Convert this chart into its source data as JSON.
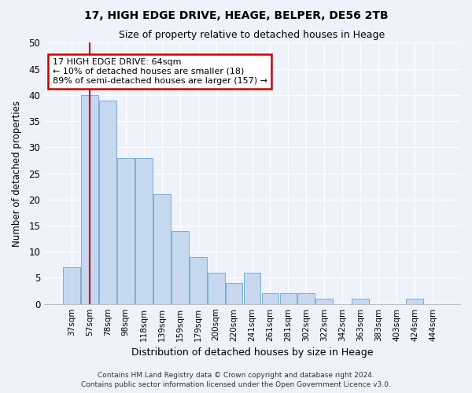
{
  "title": "17, HIGH EDGE DRIVE, HEAGE, BELPER, DE56 2TB",
  "subtitle": "Size of property relative to detached houses in Heage",
  "xlabel": "Distribution of detached houses by size in Heage",
  "ylabel": "Number of detached properties",
  "bar_color": "#c5d8f0",
  "bar_edge_color": "#7aadd4",
  "categories": [
    "37sqm",
    "57sqm",
    "78sqm",
    "98sqm",
    "118sqm",
    "139sqm",
    "159sqm",
    "179sqm",
    "200sqm",
    "220sqm",
    "241sqm",
    "261sqm",
    "281sqm",
    "302sqm",
    "322sqm",
    "342sqm",
    "363sqm",
    "383sqm",
    "403sqm",
    "424sqm",
    "444sqm"
  ],
  "values": [
    7,
    40,
    39,
    28,
    28,
    21,
    14,
    9,
    6,
    4,
    6,
    2,
    2,
    2,
    1,
    0,
    1,
    0,
    0,
    1,
    0
  ],
  "ylim": [
    0,
    50
  ],
  "yticks": [
    0,
    5,
    10,
    15,
    20,
    25,
    30,
    35,
    40,
    45,
    50
  ],
  "property_line_x": 1,
  "annotation_text": "17 HIGH EDGE DRIVE: 64sqm\n← 10% of detached houses are smaller (18)\n89% of semi-detached houses are larger (157) →",
  "annotation_box_color": "#ffffff",
  "annotation_box_edge": "#cc0000",
  "line_color": "#cc0000",
  "footer1": "Contains HM Land Registry data © Crown copyright and database right 2024.",
  "footer2": "Contains public sector information licensed under the Open Government Licence v3.0.",
  "background_color": "#eef2fb",
  "grid_color": "#ffffff"
}
